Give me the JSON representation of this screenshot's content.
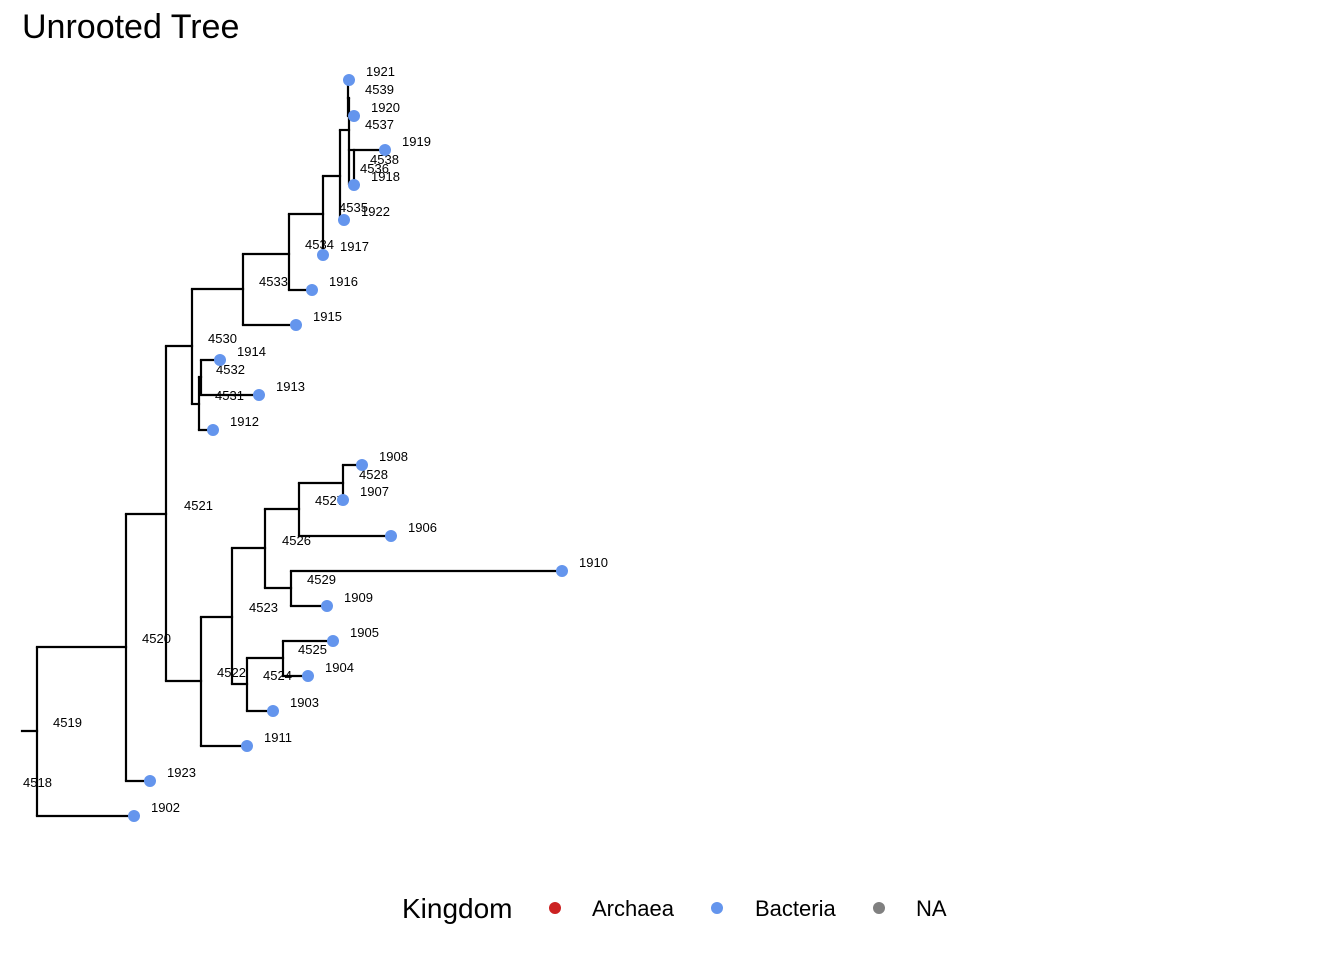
{
  "title": "Unrooted Tree",
  "colors": {
    "Archaea": "#cc2222",
    "Bacteria": "#6495ed",
    "NA": "#808080",
    "branch": "#000000"
  },
  "legend": {
    "title": "Kingdom",
    "items": [
      {
        "label": "Archaea",
        "color_key": "Archaea"
      },
      {
        "label": "Bacteria",
        "color_key": "Bacteria"
      },
      {
        "label": "NA",
        "color_key": "NA"
      }
    ]
  },
  "tree": {
    "internal_nodes": [
      "4518",
      "4519",
      "4520",
      "4521",
      "4522",
      "4523",
      "4524",
      "4525",
      "4526",
      "4527",
      "4528",
      "4529",
      "4530",
      "4531",
      "4532",
      "4533",
      "4534",
      "4535",
      "4536",
      "4537",
      "4538",
      "4539"
    ],
    "tips": [
      {
        "label": "1921",
        "kingdom": "Bacteria"
      },
      {
        "label": "1920",
        "kingdom": "Bacteria"
      },
      {
        "label": "1919",
        "kingdom": "Bacteria"
      },
      {
        "label": "1918",
        "kingdom": "Bacteria"
      },
      {
        "label": "1922",
        "kingdom": "Bacteria"
      },
      {
        "label": "1917",
        "kingdom": "Bacteria"
      },
      {
        "label": "1916",
        "kingdom": "Bacteria"
      },
      {
        "label": "1915",
        "kingdom": "Bacteria"
      },
      {
        "label": "1914",
        "kingdom": "Bacteria"
      },
      {
        "label": "1913",
        "kingdom": "Bacteria"
      },
      {
        "label": "1912",
        "kingdom": "Bacteria"
      },
      {
        "label": "1908",
        "kingdom": "Bacteria"
      },
      {
        "label": "1907",
        "kingdom": "Bacteria"
      },
      {
        "label": "1906",
        "kingdom": "Bacteria"
      },
      {
        "label": "1910",
        "kingdom": "Bacteria"
      },
      {
        "label": "1909",
        "kingdom": "Bacteria"
      },
      {
        "label": "1905",
        "kingdom": "Bacteria"
      },
      {
        "label": "1904",
        "kingdom": "Bacteria"
      },
      {
        "label": "1903",
        "kingdom": "Bacteria"
      },
      {
        "label": "1911",
        "kingdom": "Bacteria"
      },
      {
        "label": "1923",
        "kingdom": "Bacteria"
      },
      {
        "label": "1902",
        "kingdom": "Bacteria"
      }
    ]
  }
}
